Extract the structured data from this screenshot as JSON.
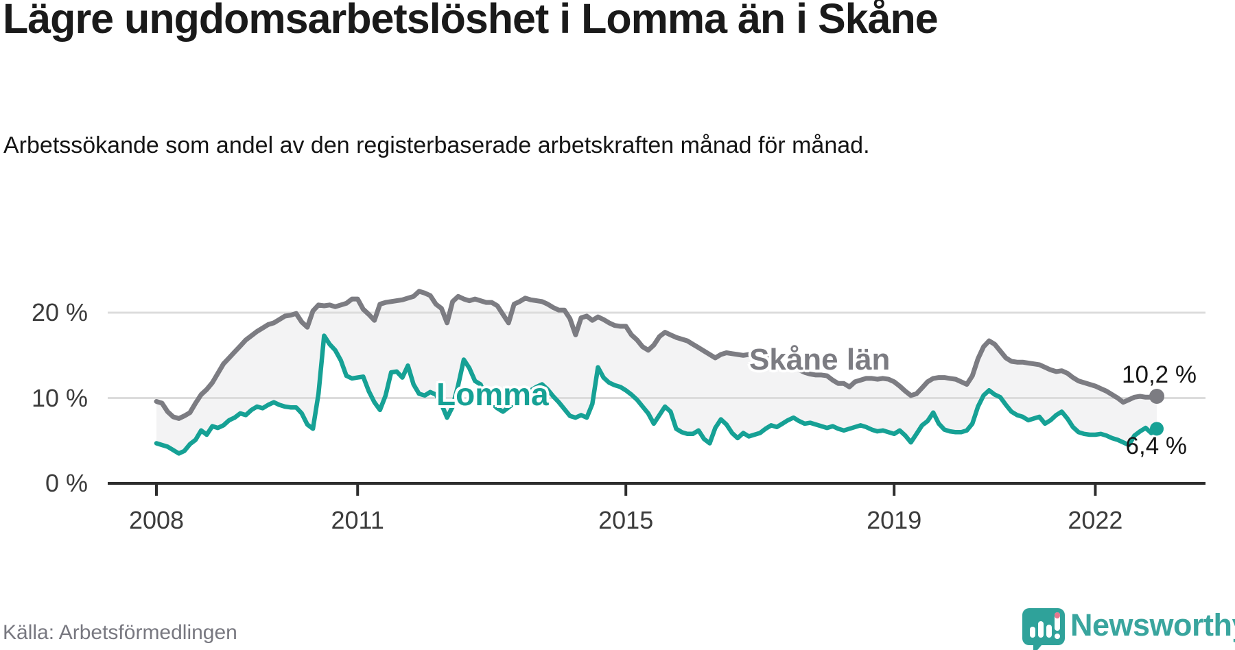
{
  "header": {
    "title": "Lägre ungdomsarbetslöshet i Lomma än i Skåne",
    "subtitle": "Arbetssökande som andel av den registerbaserade arbetskraften månad för månad."
  },
  "footer": {
    "source_label": "Källa: Arbetsförmedlingen",
    "brand_name": "Newsworthy"
  },
  "colors": {
    "skane_line": "#7c7c82",
    "lomma_line": "#16a195",
    "band_fill": "#f3f3f4",
    "gridline": "#dcdcdc",
    "axis": "#2d2d2d",
    "brand_teal": "#39a59e",
    "text_dark": "#1a1a1a"
  },
  "chart_data": {
    "type": "line",
    "title": "Lägre ungdomsarbetslöshet i Lomma än i Skåne",
    "xlabel": "",
    "ylabel": "",
    "x_start": "2008-01",
    "x_end": "2022-12",
    "frequency": "monthly",
    "ylim": [
      0,
      23
    ],
    "grid": "horizontal",
    "legend_position": "inline-labels",
    "y_ticks": [
      {
        "label": "0 %",
        "value": 0
      },
      {
        "label": "10 %",
        "value": 10
      },
      {
        "label": "20 %",
        "value": 20
      }
    ],
    "x_ticks": [
      {
        "label": "2008",
        "month_index": 0
      },
      {
        "label": "2011",
        "month_index": 36
      },
      {
        "label": "2015",
        "month_index": 84
      },
      {
        "label": "2019",
        "month_index": 132
      },
      {
        "label": "2022",
        "month_index": 168
      }
    ],
    "series": [
      {
        "name": "Skåne län",
        "color": "#7c7c82",
        "end_label": "10,2 %",
        "end_value": 10.2,
        "values": [
          9.6,
          9.4,
          8.4,
          7.8,
          7.6,
          7.9,
          8.3,
          9.4,
          10.4,
          11.0,
          11.8,
          12.9,
          14.0,
          14.7,
          15.4,
          16.1,
          16.8,
          17.3,
          17.8,
          18.2,
          18.6,
          18.8,
          19.2,
          19.6,
          19.7,
          19.9,
          18.9,
          18.3,
          20.2,
          20.9,
          20.8,
          20.9,
          20.7,
          20.9,
          21.1,
          21.6,
          21.6,
          20.4,
          19.8,
          19.1,
          21.0,
          21.2,
          21.3,
          21.4,
          21.5,
          21.7,
          21.9,
          22.5,
          22.3,
          22.0,
          21.0,
          20.5,
          18.8,
          21.3,
          21.9,
          21.6,
          21.4,
          21.6,
          21.4,
          21.2,
          21.2,
          20.8,
          19.8,
          18.8,
          21.0,
          21.3,
          21.7,
          21.5,
          21.4,
          21.3,
          21.0,
          20.6,
          20.3,
          20.3,
          19.3,
          17.4,
          19.4,
          19.6,
          19.1,
          19.5,
          19.2,
          18.8,
          18.5,
          18.4,
          18.4,
          17.4,
          16.8,
          16.0,
          15.6,
          16.2,
          17.2,
          17.7,
          17.4,
          17.1,
          16.9,
          16.7,
          16.3,
          15.9,
          15.5,
          15.1,
          14.7,
          15.1,
          15.3,
          15.2,
          15.1,
          15.0,
          15.1,
          15.0,
          14.9,
          14.7,
          14.5,
          14.2,
          14.0,
          13.8,
          13.6,
          13.3,
          13.0,
          12.8,
          12.7,
          12.7,
          12.6,
          12.1,
          11.7,
          11.7,
          11.3,
          11.9,
          12.1,
          12.3,
          12.3,
          12.2,
          12.3,
          12.2,
          11.9,
          11.4,
          10.8,
          10.3,
          10.5,
          11.2,
          11.9,
          12.3,
          12.4,
          12.4,
          12.3,
          12.2,
          11.9,
          11.6,
          12.6,
          14.6,
          16.0,
          16.7,
          16.3,
          15.5,
          14.7,
          14.3,
          14.2,
          14.2,
          14.1,
          14.0,
          13.9,
          13.6,
          13.3,
          13.1,
          13.2,
          12.9,
          12.4,
          12.0,
          11.8,
          11.6,
          11.4,
          11.1,
          10.8,
          10.4,
          10.0,
          9.5,
          9.8,
          10.1,
          10.2,
          10.1,
          10.1,
          10.2
        ]
      },
      {
        "name": "Lomma",
        "color": "#16a195",
        "end_label": "6,4 %",
        "end_value": 6.4,
        "values": [
          4.7,
          4.5,
          4.3,
          3.9,
          3.5,
          3.8,
          4.6,
          5.1,
          6.2,
          5.7,
          6.7,
          6.5,
          6.8,
          7.4,
          7.7,
          8.2,
          8.0,
          8.6,
          9.0,
          8.8,
          9.2,
          9.5,
          9.2,
          9.0,
          8.9,
          8.9,
          8.2,
          6.9,
          6.4,
          10.5,
          17.3,
          16.3,
          15.6,
          14.4,
          12.6,
          12.3,
          12.4,
          12.5,
          10.8,
          9.5,
          8.6,
          10.3,
          13.0,
          13.1,
          12.4,
          13.8,
          11.6,
          10.5,
          10.3,
          10.7,
          10.4,
          9.3,
          7.7,
          9.0,
          11.5,
          14.5,
          13.5,
          12.0,
          11.6,
          10.0,
          9.4,
          8.8,
          8.4,
          8.9,
          9.4,
          9.9,
          10.4,
          10.9,
          11.3,
          11.6,
          11.0,
          10.2,
          9.5,
          8.7,
          7.9,
          7.7,
          8.0,
          7.7,
          9.3,
          13.6,
          12.4,
          11.8,
          11.5,
          11.3,
          10.9,
          10.4,
          9.8,
          9.0,
          8.2,
          7.0,
          8.0,
          9.0,
          8.4,
          6.4,
          6.0,
          5.8,
          5.8,
          6.2,
          5.2,
          4.7,
          6.5,
          7.5,
          6.9,
          5.9,
          5.3,
          5.9,
          5.5,
          5.7,
          5.9,
          6.4,
          6.8,
          6.6,
          7.0,
          7.4,
          7.7,
          7.3,
          7.0,
          7.1,
          6.9,
          6.7,
          6.5,
          6.7,
          6.4,
          6.2,
          6.4,
          6.6,
          6.8,
          6.6,
          6.3,
          6.1,
          6.2,
          6.0,
          5.8,
          6.2,
          5.6,
          4.8,
          5.8,
          6.8,
          7.3,
          8.3,
          7.0,
          6.3,
          6.1,
          6.0,
          6.0,
          6.2,
          7.0,
          9.0,
          10.3,
          10.9,
          10.4,
          10.1,
          9.2,
          8.4,
          8.0,
          7.8,
          7.4,
          7.6,
          7.8,
          7.0,
          7.4,
          8.0,
          8.4,
          7.6,
          6.6,
          6.0,
          5.8,
          5.7,
          5.7,
          5.8,
          5.6,
          5.3,
          5.1,
          4.8,
          4.5,
          5.6,
          6.1,
          6.5,
          5.9,
          6.4
        ]
      }
    ]
  }
}
